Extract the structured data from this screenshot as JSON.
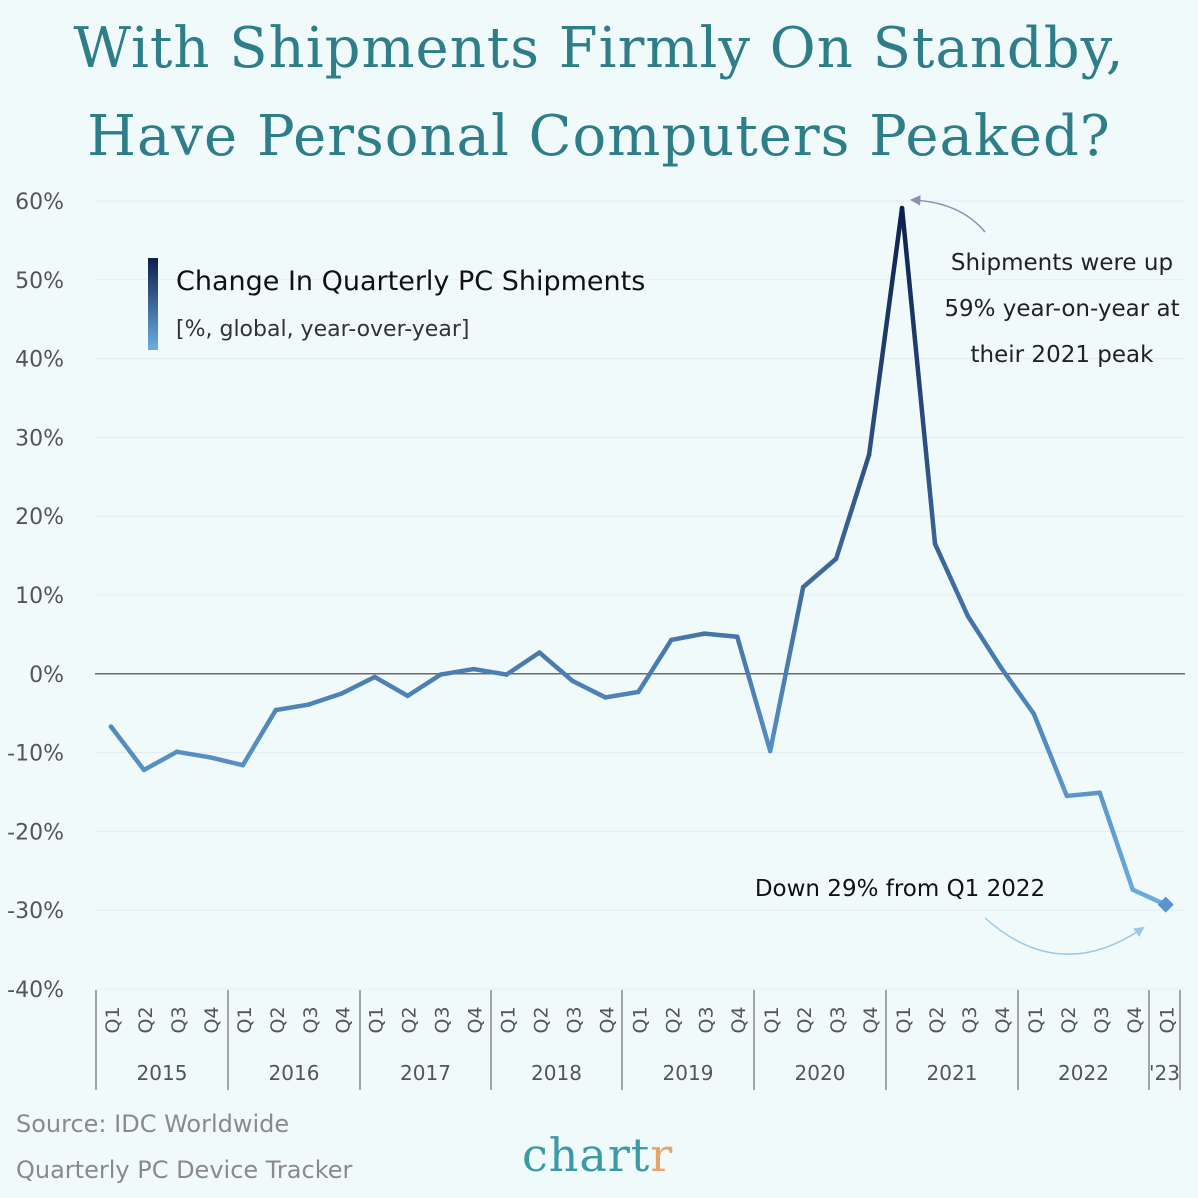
{
  "title_line1": "With Shipments Firmly On Standby,",
  "title_line2": "Have Personal Computers Peaked?",
  "source_line1": "Source: IDC Worldwide",
  "source_line2": "Quarterly PC Device Tracker",
  "logo": "chartr",
  "chart_data": {
    "type": "line",
    "legend_title": "Change In Quarterly PC Shipments",
    "legend_subtitle": "[%, global, year-over-year]",
    "ylim": [
      -40,
      60
    ],
    "yticks": [
      "60%",
      "50%",
      "40%",
      "30%",
      "20%",
      "10%",
      "0%",
      "-10%",
      "-20%",
      "-30%",
      "-40%"
    ],
    "grid": true,
    "colors": {
      "top": "#0c1f4e",
      "bottom": "#6aaee2",
      "zero_line": "#6b6b6b",
      "grid": "#e2ecef"
    },
    "years": [
      "2015",
      "2016",
      "2017",
      "2018",
      "2019",
      "2020",
      "2021",
      "2022",
      "'23"
    ],
    "quarters": [
      "Q1",
      "Q2",
      "Q3",
      "Q4",
      "Q1",
      "Q2",
      "Q3",
      "Q4",
      "Q1",
      "Q2",
      "Q3",
      "Q4",
      "Q1",
      "Q2",
      "Q3",
      "Q4",
      "Q1",
      "Q2",
      "Q3",
      "Q4",
      "Q1",
      "Q2",
      "Q3",
      "Q4",
      "Q1",
      "Q2",
      "Q3",
      "Q4",
      "Q1",
      "Q2",
      "Q3",
      "Q4",
      "Q1"
    ],
    "values": [
      -6.7,
      -12.2,
      -9.9,
      -10.6,
      -11.6,
      -4.6,
      -3.9,
      -2.5,
      -0.4,
      -2.8,
      -0.1,
      0.6,
      -0.1,
      2.7,
      -0.9,
      -3.0,
      -2.3,
      4.3,
      5.1,
      4.7,
      -9.8,
      11.0,
      14.6,
      27.8,
      59.1,
      16.5,
      7.3,
      0.8,
      -5.1,
      -15.5,
      -15.1,
      -27.4,
      -29.3
    ],
    "annotations": {
      "peak": [
        "Shipments were up",
        "59% year-on-year at",
        "their 2021 peak"
      ],
      "latest": "Down 29% from Q1 2022"
    }
  }
}
